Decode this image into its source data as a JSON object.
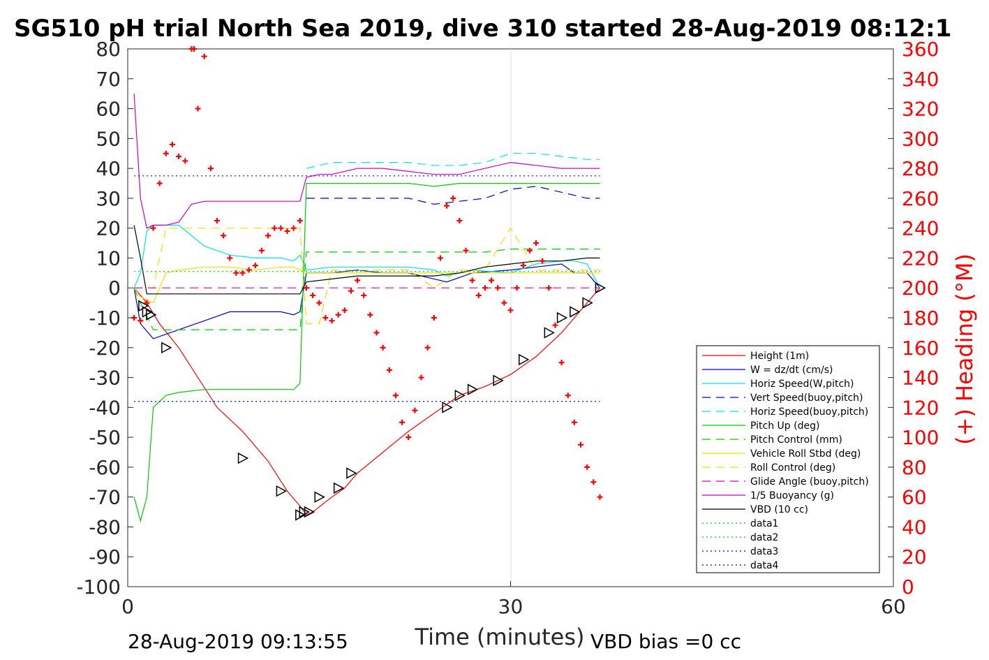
{
  "chart_data": {
    "type": "line",
    "title": "SG510 pH trial North Sea 2019, dive 310 started 28-Aug-2019 08:12:1",
    "xlabel": "Time (minutes)",
    "ylabel_right": "(+) Heading (°M)",
    "xlim": [
      0,
      60
    ],
    "ylim": [
      -100,
      80
    ],
    "ylim_right": [
      0,
      360
    ],
    "x_ticks": [
      "0",
      "30",
      "60"
    ],
    "y_ticks": [
      "80",
      "70",
      "60",
      "50",
      "40",
      "30",
      "20",
      "10",
      "0",
      "-10",
      "-20",
      "-30",
      "-40",
      "-50",
      "-60",
      "-70",
      "-80",
      "-90",
      "-100"
    ],
    "y_ticks_right": [
      "360",
      "340",
      "320",
      "300",
      "280",
      "260",
      "240",
      "220",
      "200",
      "180",
      "160",
      "140",
      "120",
      "100",
      "80",
      "60",
      "40",
      "20",
      "0"
    ],
    "grid": "x at 30",
    "legend_position": "lower-right",
    "footer_left": "28-Aug-2019 09:13:55",
    "footer_right": "VBD bias =0 cc",
    "legend": [
      {
        "label": "Height (1m)",
        "color": "#ff0000",
        "dash": "solid"
      },
      {
        "label": "W = dz/dt (cm/s)",
        "color": "#0000cc",
        "dash": "solid"
      },
      {
        "label": "Horiz Speed(W,pitch)",
        "color": "#00e5e5",
        "dash": "solid"
      },
      {
        "label": "Vert Speed(buoy,pitch)",
        "color": "#0000cc",
        "dash": "dashed"
      },
      {
        "label": "Horiz Speed(buoy,pitch)",
        "color": "#00e5e5",
        "dash": "dashed"
      },
      {
        "label": "Pitch Up (deg)",
        "color": "#00cc00",
        "dash": "solid"
      },
      {
        "label": "Pitch Control (mm)",
        "color": "#00cc00",
        "dash": "dashed"
      },
      {
        "label": "Vehicle Roll Stbd (deg)",
        "color": "#f0e000",
        "dash": "solid"
      },
      {
        "label": "Roll Control (deg)",
        "color": "#f0e000",
        "dash": "dashed"
      },
      {
        "label": "Glide Angle (buoy,pitch)",
        "color": "#cc00cc",
        "dash": "dashed"
      },
      {
        "label": "1/5 Buoyancy (g)",
        "color": "#cc00cc",
        "dash": "solid"
      },
      {
        "label": "VBD (10 cc)",
        "color": "#000000",
        "dash": "solid"
      },
      {
        "label": "data1",
        "color": "#00cc00",
        "dash": "dotted"
      },
      {
        "label": "data2",
        "color": "#00cc00",
        "dash": "dotted"
      },
      {
        "label": "data3",
        "color": "#0000cc",
        "dash": "dotted"
      },
      {
        "label": "data4",
        "color": "#0000cc",
        "dash": "dotted"
      }
    ],
    "series": [
      {
        "name": "Height (1m)",
        "x": [
          0.5,
          1.5,
          2.5,
          4,
          5.5,
          7,
          9,
          11,
          12.5,
          13.5,
          14,
          14.5,
          16,
          17,
          18,
          20,
          22,
          24,
          26,
          28,
          30,
          32,
          34,
          35,
          36,
          37
        ],
        "y": [
          0,
          -5,
          -12,
          -20,
          -30,
          -40,
          -48,
          -58,
          -68,
          -73,
          -76,
          -75,
          -70,
          -67,
          -62,
          -55,
          -48,
          -42,
          -36,
          -33,
          -29,
          -23,
          -15,
          -10,
          -5,
          0
        ]
      },
      {
        "name": "W = dz/dt (cm/s)",
        "x": [
          0.5,
          1,
          2,
          4,
          6,
          8,
          10,
          12,
          13,
          13.5,
          14,
          16,
          18,
          20,
          22,
          24,
          25,
          27,
          30,
          32,
          34,
          35,
          36,
          37
        ],
        "y": [
          0,
          -12,
          -17,
          -14,
          -11,
          -8,
          -8,
          -8,
          -9,
          -8,
          5,
          5,
          6,
          5,
          5,
          3,
          2,
          5,
          6,
          7,
          8,
          5,
          5,
          0
        ]
      },
      {
        "name": "Horiz Speed(W,pitch)",
        "x": [
          0.5,
          1,
          1.5,
          2,
          3,
          4,
          6,
          8,
          10,
          12,
          13,
          13.5,
          14,
          16,
          18,
          20,
          22,
          24,
          25,
          27,
          30,
          32,
          34,
          35,
          36,
          37
        ],
        "y": [
          0,
          5,
          19,
          21,
          21,
          21,
          14,
          11,
          10,
          10,
          9,
          11,
          6,
          7,
          7,
          7,
          7,
          6,
          4,
          6,
          5,
          8,
          9,
          9,
          8,
          0
        ]
      },
      {
        "name": "Vert Speed(buoy,pitch)",
        "x": [
          14,
          16,
          18,
          20,
          22,
          24,
          26,
          28,
          30,
          32,
          34,
          36,
          37
        ],
        "y": [
          30,
          30,
          30,
          30,
          30,
          28,
          29,
          30,
          33,
          34,
          32,
          30,
          30
        ]
      },
      {
        "name": "Horiz Speed(buoy,pitch)",
        "x": [
          14,
          16,
          18,
          20,
          22,
          24,
          26,
          28,
          30,
          32,
          34,
          36,
          37
        ],
        "y": [
          40,
          42,
          42,
          42,
          42,
          41,
          41,
          42,
          45,
          45,
          44,
          43,
          43
        ]
      },
      {
        "name": "Pitch Up (deg)",
        "x": [
          0.5,
          1,
          1.5,
          2,
          3,
          4,
          6,
          8,
          10,
          12,
          13,
          13.5,
          14,
          16,
          18,
          20,
          22,
          24,
          26,
          28,
          30,
          32,
          34,
          36,
          37
        ],
        "y": [
          -70,
          -78,
          -70,
          -40,
          -36,
          -35,
          -34,
          -34,
          -34,
          -34,
          -34,
          -32,
          35,
          35,
          35,
          35,
          35,
          34,
          35,
          35,
          35,
          35,
          35,
          35,
          35
        ]
      },
      {
        "name": "Pitch Control (mm)",
        "x": [
          0.5,
          1,
          2,
          4,
          6,
          8,
          10,
          12,
          13,
          13.5,
          14,
          16,
          18,
          20,
          22,
          24,
          26,
          28,
          30,
          32,
          34,
          36,
          37
        ],
        "y": [
          0,
          -5,
          -14,
          -14,
          -14,
          -14,
          -14,
          -14,
          -14,
          -14,
          12,
          12,
          12,
          12,
          12,
          12,
          12,
          12,
          13,
          13,
          13,
          13,
          13
        ]
      },
      {
        "name": "Vehicle Roll Stbd (deg)",
        "x": [
          0.5,
          1,
          2,
          3,
          4,
          6,
          8,
          10,
          12,
          13,
          13.5,
          14,
          16,
          18,
          20,
          22,
          24,
          26,
          28,
          30,
          32,
          34,
          36,
          37
        ],
        "y": [
          0,
          -3,
          -5,
          5,
          6,
          7,
          7,
          6,
          7,
          7,
          6,
          5,
          5,
          5,
          5,
          5,
          5,
          5,
          5,
          5,
          5,
          5,
          5,
          5
        ]
      },
      {
        "name": "Roll Control (deg)",
        "x": [
          0.5,
          2,
          3,
          4,
          6,
          8,
          10,
          12,
          13,
          13.5,
          14,
          15,
          16,
          18,
          20,
          22,
          24,
          26,
          28,
          30,
          32,
          34,
          36,
          37
        ],
        "y": [
          0,
          0,
          20,
          20,
          20,
          20,
          20,
          20,
          20,
          20,
          -12,
          -12,
          6,
          6,
          6,
          6,
          0,
          6,
          6,
          20,
          6,
          6,
          6,
          6
        ]
      },
      {
        "name": "Glide Angle (buoy,pitch)",
        "x": [
          0.5,
          13.5,
          14,
          37
        ],
        "y": [
          0,
          0,
          0,
          0
        ]
      },
      {
        "name": "1/5 Buoyancy (g)",
        "x": [
          0.5,
          1,
          1.5,
          2,
          3,
          4,
          5,
          6,
          8,
          10,
          12,
          13.5,
          14,
          15,
          16,
          18,
          20,
          22,
          24,
          26,
          28,
          30,
          32,
          34,
          36,
          37
        ],
        "y": [
          65,
          30,
          20,
          21,
          21,
          22,
          28,
          29,
          29,
          29,
          29,
          29,
          37,
          38,
          38,
          40,
          40,
          39,
          38,
          38,
          40,
          42,
          41,
          40,
          40,
          40
        ]
      },
      {
        "name": "VBD (10 cc)",
        "x": [
          0.5,
          1,
          1.5,
          2,
          4,
          6,
          8,
          10,
          12,
          13.5,
          14,
          16,
          18,
          20,
          22,
          24,
          26,
          28,
          30,
          32,
          34,
          36,
          37
        ],
        "y": [
          21,
          10,
          -2,
          -2,
          -2,
          -2,
          -2,
          -2,
          -2,
          -2,
          2,
          3,
          4,
          4,
          4,
          4,
          5,
          7,
          8,
          9,
          9,
          10,
          10
        ]
      },
      {
        "name": "data1",
        "x": [
          0.5,
          37
        ],
        "y": [
          5.5,
          5.5
        ]
      },
      {
        "name": "data2",
        "x": [
          0.5,
          37
        ],
        "y": [
          -38,
          -38
        ]
      },
      {
        "name": "data3",
        "x": [
          0.5,
          37
        ],
        "y": [
          37.5,
          37.5
        ]
      },
      {
        "name": "data4",
        "x": [
          0.5,
          37
        ],
        "y": [
          -38,
          -38
        ]
      }
    ],
    "heading_points": {
      "name": "Heading",
      "x": [
        0.5,
        1,
        1.5,
        2,
        2.5,
        3,
        3.5,
        4,
        4.5,
        5,
        5.2,
        5.5,
        6,
        6.5,
        7,
        7.5,
        8,
        8.5,
        9,
        9.5,
        10,
        10.5,
        11,
        11.5,
        12,
        12.5,
        13,
        13.5,
        14,
        14.5,
        15,
        15.5,
        16,
        16.5,
        17,
        17.5,
        18,
        18.5,
        19,
        19.5,
        20,
        20.5,
        21,
        21.5,
        22,
        22.5,
        23,
        23.5,
        24,
        24.5,
        25,
        25.5,
        26,
        26.5,
        27,
        27.5,
        28,
        28.5,
        29,
        29.5,
        30,
        30.5,
        31,
        31.5,
        32,
        32.5,
        33,
        33.5,
        34,
        34.5,
        35,
        35.5,
        36,
        36.5,
        37
      ],
      "y": [
        180,
        178,
        190,
        240,
        270,
        290,
        296,
        288,
        285,
        360,
        360,
        320,
        355,
        280,
        245,
        235,
        220,
        210,
        210,
        212,
        215,
        225,
        235,
        240,
        240,
        238,
        240,
        245,
        200,
        195,
        190,
        180,
        178,
        182,
        185,
        198,
        205,
        195,
        182,
        170,
        160,
        145,
        128,
        110,
        100,
        118,
        140,
        160,
        180,
        220,
        255,
        260,
        245,
        225,
        205,
        195,
        200,
        205,
        200,
        190,
        185,
        200,
        215,
        225,
        230,
        218,
        200,
        175,
        150,
        128,
        110,
        95,
        80,
        70,
        60
      ]
    },
    "triangle_markers": {
      "x": [
        1.2,
        1.5,
        1.8,
        3,
        9,
        12,
        13.5,
        13.8,
        14.2,
        15,
        16.5,
        17.5,
        25,
        26,
        27,
        29,
        31,
        33,
        34,
        35,
        36,
        37
      ],
      "y": [
        -6,
        -8,
        -9,
        -20,
        -57,
        -68,
        -76,
        -75,
        -75,
        -70,
        -67,
        -62,
        -40,
        -36,
        -34,
        -31,
        -24,
        -15,
        -10,
        -8,
        -5,
        0
      ]
    }
  }
}
